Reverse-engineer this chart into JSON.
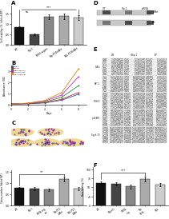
{
  "panel_A": {
    "title": "A",
    "ylabel": "Cell viability (%, fold of WT)",
    "categories": [
      "WT",
      "Rip-1",
      "PTEN-regain",
      "Rip-P13k/Akt",
      "RBL-P13k/Akt"
    ],
    "values": [
      0.85,
      0.52,
      1.35,
      1.38,
      1.32
    ],
    "errors": [
      0.06,
      0.04,
      0.12,
      0.13,
      0.11
    ],
    "bar_colors": [
      "#111111",
      "#444444",
      "#888888",
      "#aaaaaa",
      "#cccccc"
    ],
    "ylim": [
      0,
      1.9
    ],
    "yticks": [
      0.0,
      0.5,
      1.0,
      1.5
    ]
  },
  "panel_B": {
    "title": "B",
    "ylabel": "Absorbance (OD)",
    "xlabel": "Days",
    "series": [
      {
        "label": "Hela-A",
        "color": "#2255cc",
        "marker": "s",
        "values": [
          0.08,
          0.1,
          0.18,
          0.42,
          0.95
        ]
      },
      {
        "label": "Rip-m1",
        "color": "#cc2222",
        "marker": "s",
        "values": [
          0.08,
          0.11,
          0.2,
          0.5,
          1.1
        ]
      },
      {
        "label": "PTEN-regain/s",
        "color": "#228833",
        "marker": "s",
        "values": [
          0.08,
          0.13,
          0.26,
          0.68,
          1.7
        ]
      },
      {
        "label": "Rip P13k/Akt",
        "color": "#cc22cc",
        "marker": "s",
        "values": [
          0.08,
          0.15,
          0.34,
          0.88,
          2.5
        ]
      },
      {
        "label": "RBL P13k/Akt",
        "color": "#dd8800",
        "marker": "s",
        "values": [
          0.08,
          0.16,
          0.4,
          1.1,
          3.2
        ]
      }
    ],
    "xvals": [
      0,
      2,
      4,
      6,
      8
    ],
    "ylim": [
      0,
      3.5
    ],
    "xlim": [
      0,
      9
    ],
    "yticks": [
      0,
      1,
      2,
      3
    ],
    "xticks": [
      0,
      2,
      4,
      6,
      8
    ]
  },
  "panel_C_bar": {
    "ylabel": "Colony number (fold of WT)",
    "categories": [
      "WT",
      "Rip-1",
      "PTEN-reg\nain",
      "Rip-P13\nk/Akt",
      "RBL-P13\nk/Akt"
    ],
    "values": [
      0.78,
      0.75,
      0.7,
      1.18,
      0.76
    ],
    "errors": [
      0.06,
      0.06,
      0.05,
      0.12,
      0.07
    ],
    "bar_colors": [
      "#111111",
      "#444444",
      "#888888",
      "#aaaaaa",
      "#cccccc"
    ],
    "ylim": [
      0,
      1.6
    ],
    "yticks": [
      0.0,
      0.5,
      1.0,
      1.5
    ]
  },
  "panel_F_bar": {
    "title": "F",
    "ylabel": "Area healing (%)",
    "categories": [
      "WT",
      "Rip-m1",
      "PTEN-\nreg",
      "Rip-\nP13k",
      "RBL"
    ],
    "values": [
      62,
      60,
      52,
      73,
      57
    ],
    "errors": [
      5,
      4,
      6,
      6,
      5
    ],
    "bar_colors": [
      "#111111",
      "#444444",
      "#888888",
      "#aaaaaa",
      "#cccccc"
    ],
    "ylim": [
      0,
      105
    ],
    "yticks": [
      0,
      25,
      50,
      75,
      100
    ]
  },
  "bg_color": "#ffffff",
  "wound_grid_rows": 5,
  "wound_grid_cols": 3,
  "wound_row_labels": [
    "P-Akt",
    "AKT-1",
    "P-S6K1",
    "p-4EBP1",
    "S-gph-70"
  ],
  "wound_col_labels": [
    "Wt",
    "siRip-1",
    "IEF"
  ],
  "blot_rows": [
    {
      "label": "P-Akt",
      "bands": [
        0.18,
        0.47,
        0.76
      ]
    },
    {
      "label": "Akt",
      "bands": [
        0.18,
        0.47,
        0.76
      ]
    }
  ],
  "blot_col_labels": [
    "WT",
    "Rip-1",
    "siRNA"
  ]
}
